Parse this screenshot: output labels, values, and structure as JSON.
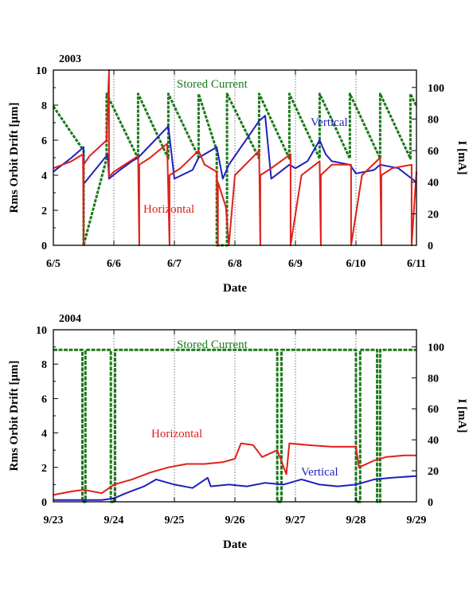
{
  "chart_data": [
    {
      "type": "line",
      "title": "2003",
      "xlabel": "Date",
      "ylabel": "Rms Orbit Drift [μm]",
      "y2label": "I [mA]",
      "x_tick_labels": [
        "6/5",
        "6/6",
        "6/7",
        "6/8",
        "6/9",
        "6/10",
        "6/11"
      ],
      "ylim": [
        0,
        10
      ],
      "y_ticks": [
        "0",
        "2",
        "4",
        "6",
        "8",
        "10"
      ],
      "y2lim": [
        0,
        111
      ],
      "y2_ticks": [
        "0",
        "20",
        "40",
        "60",
        "80",
        "100"
      ],
      "grid": "dotted vertical lines at each day",
      "annotations": [
        "Stored Current",
        "Vertical",
        "Horizontal"
      ],
      "series": [
        {
          "name": "Stored Current",
          "color": "#1a7a1a",
          "axis": "right",
          "x": [
            0,
            0.5,
            0.5,
            0.88,
            0.88,
            1.4,
            1.4,
            1.9,
            1.9,
            2.4,
            2.4,
            2.7,
            2.7,
            2.87,
            2.87,
            3.4,
            3.4,
            3.9,
            3.9,
            4.4,
            4.4,
            4.9,
            4.9,
            5.4,
            5.4,
            5.9,
            5.9,
            6.0
          ],
          "values": [
            88,
            60,
            0,
            55,
            96,
            55,
            96,
            55,
            96,
            56,
            96,
            60,
            0,
            0,
            96,
            55,
            96,
            55,
            96,
            55,
            96,
            55,
            96,
            55,
            96,
            55,
            96,
            88
          ]
        },
        {
          "name": "Vertical",
          "color": "#1f1fbf",
          "axis": "left",
          "x": [
            0,
            0.3,
            0.5,
            0.5,
            0.9,
            0.92,
            1.1,
            1.3,
            1.4,
            1.9,
            2.0,
            2.3,
            2.4,
            2.7,
            2.8,
            2.9,
            3.1,
            3.4,
            3.5,
            3.6,
            3.9,
            4.0,
            4.2,
            4.4,
            4.5,
            4.6,
            4.9,
            5.0,
            5.3,
            5.4,
            5.7,
            6.0
          ],
          "values": [
            4.2,
            5.0,
            5.6,
            3.5,
            5.2,
            3.8,
            4.3,
            4.8,
            5.0,
            6.8,
            3.8,
            4.3,
            5.0,
            5.6,
            3.8,
            4.6,
            5.6,
            7.1,
            7.4,
            3.8,
            4.6,
            4.4,
            4.8,
            6.0,
            5.2,
            4.8,
            4.6,
            4.1,
            4.3,
            4.6,
            4.4,
            3.6
          ]
        },
        {
          "name": "Horizontal",
          "color": "#e0201a",
          "axis": "left",
          "x": [
            0,
            0.3,
            0.49,
            0.5,
            0.5,
            0.6,
            0.88,
            0.92,
            0.92,
            1.0,
            1.4,
            1.42,
            1.42,
            1.6,
            1.88,
            1.92,
            1.92,
            2.1,
            2.4,
            2.5,
            2.7,
            2.72,
            2.72,
            2.85,
            2.9,
            3.0,
            3.4,
            3.42,
            3.42,
            3.6,
            3.92,
            3.92,
            4.1,
            4.4,
            4.42,
            4.42,
            4.6,
            4.92,
            4.92,
            5.1,
            5.4,
            5.42,
            5.42,
            5.6,
            5.92,
            5.92,
            6.0
          ],
          "values": [
            4.4,
            4.8,
            5.2,
            0,
            4.6,
            5.1,
            6.0,
            10,
            3.9,
            4.2,
            5.1,
            0,
            4.6,
            5.0,
            5.8,
            0,
            4.0,
            4.4,
            5.4,
            4.6,
            4.2,
            0,
            3.6,
            2.2,
            0,
            4.0,
            5.4,
            0,
            4.0,
            4.4,
            5.2,
            0,
            4.0,
            4.8,
            0,
            4.0,
            4.6,
            4.6,
            0,
            4.0,
            5.0,
            0,
            4.0,
            4.4,
            4.6,
            0,
            4.2
          ]
        }
      ]
    },
    {
      "type": "line",
      "title": "2004",
      "xlabel": "Date",
      "ylabel": "Rms Orbit Drift [μm]",
      "y2label": "I [mA]",
      "x_tick_labels": [
        "9/23",
        "9/24",
        "9/25",
        "9/26",
        "9/27",
        "9/28",
        "9/29"
      ],
      "ylim": [
        0,
        10
      ],
      "y_ticks": [
        "0",
        "2",
        "4",
        "6",
        "8",
        "10"
      ],
      "y2lim": [
        0,
        111
      ],
      "y2_ticks": [
        "0",
        "20",
        "40",
        "60",
        "80",
        "100"
      ],
      "grid": "dotted vertical lines at each day",
      "annotations": [
        "Stored Current",
        "Horizontal",
        "Vertical"
      ],
      "series": [
        {
          "name": "Stored Current",
          "color": "#1a7a1a",
          "axis": "right",
          "x": [
            0,
            0.48,
            0.48,
            0.53,
            0.53,
            0.95,
            0.95,
            1.02,
            1.02,
            3.7,
            3.7,
            3.77,
            3.77,
            5.0,
            5.0,
            5.07,
            5.07,
            5.35,
            5.35,
            5.4,
            5.4,
            6.0
          ],
          "values": [
            98,
            98,
            0,
            0,
            98,
            98,
            0,
            0,
            98,
            98,
            0,
            0,
            98,
            98,
            0,
            0,
            98,
            98,
            0,
            0,
            98,
            98
          ]
        },
        {
          "name": "Horizontal",
          "color": "#e0201a",
          "axis": "left",
          "x": [
            0,
            0.3,
            0.5,
            0.8,
            1.0,
            1.3,
            1.6,
            1.9,
            2.2,
            2.5,
            2.8,
            3.0,
            3.1,
            3.3,
            3.45,
            3.7,
            3.85,
            3.9,
            4.2,
            4.6,
            5.0,
            5.05,
            5.3,
            5.5,
            5.8,
            6.0
          ],
          "values": [
            0.4,
            0.6,
            0.7,
            0.5,
            1.0,
            1.3,
            1.7,
            2.0,
            2.2,
            2.2,
            2.3,
            2.5,
            3.4,
            3.3,
            2.6,
            3.0,
            1.6,
            3.4,
            3.3,
            3.2,
            3.2,
            2.0,
            2.4,
            2.6,
            2.7,
            2.7
          ]
        },
        {
          "name": "Vertical",
          "color": "#1f1fbf",
          "axis": "left",
          "x": [
            0,
            0.5,
            0.8,
            1.0,
            1.2,
            1.5,
            1.7,
            2.0,
            2.3,
            2.55,
            2.6,
            2.9,
            3.2,
            3.5,
            3.8,
            4.0,
            4.1,
            4.4,
            4.7,
            5.0,
            5.3,
            5.6,
            6.0
          ],
          "values": [
            0.1,
            0.1,
            0.1,
            0.2,
            0.5,
            0.9,
            1.3,
            1.0,
            0.8,
            1.4,
            0.9,
            1.0,
            0.9,
            1.1,
            1.0,
            1.2,
            1.3,
            1.0,
            0.9,
            1.0,
            1.3,
            1.4,
            1.5
          ]
        }
      ]
    }
  ]
}
